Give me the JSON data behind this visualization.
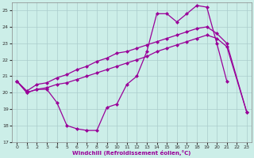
{
  "xlabel": "Windchill (Refroidissement éolien,°C)",
  "xlim": [
    -0.5,
    23.5
  ],
  "ylim": [
    17,
    25.5
  ],
  "xticks": [
    0,
    1,
    2,
    3,
    4,
    5,
    6,
    7,
    8,
    9,
    10,
    11,
    12,
    13,
    14,
    15,
    16,
    17,
    18,
    19,
    20,
    21,
    22,
    23
  ],
  "yticks": [
    17,
    18,
    19,
    20,
    21,
    22,
    23,
    24,
    25
  ],
  "bg_color": "#cceee8",
  "grid_color": "#aacccc",
  "line_color": "#990099",
  "line1_x": [
    0,
    1,
    2,
    3,
    4,
    5,
    6,
    7,
    8,
    9,
    10,
    11,
    12,
    13,
    14,
    15,
    16,
    17,
    18,
    19,
    20,
    21
  ],
  "line1_y": [
    20.7,
    20.0,
    20.2,
    20.2,
    19.4,
    18.0,
    17.8,
    17.7,
    17.7,
    19.1,
    19.3,
    20.5,
    21.0,
    22.5,
    24.8,
    24.8,
    24.3,
    24.8,
    25.3,
    25.2,
    23.0,
    20.7
  ],
  "line2_x": [
    0,
    1,
    2,
    3,
    4,
    5,
    6,
    7,
    8,
    9,
    10,
    11,
    12,
    13,
    14,
    15,
    16,
    17,
    18,
    19,
    20,
    21,
    23
  ],
  "line2_y": [
    20.7,
    20.1,
    20.5,
    20.6,
    20.9,
    21.1,
    21.4,
    21.6,
    21.9,
    22.1,
    22.4,
    22.5,
    22.7,
    22.9,
    23.1,
    23.3,
    23.5,
    23.7,
    23.9,
    24.0,
    23.6,
    23.0,
    18.8
  ],
  "line3_x": [
    0,
    1,
    2,
    3,
    4,
    5,
    6,
    7,
    8,
    9,
    10,
    11,
    12,
    13,
    14,
    15,
    16,
    17,
    18,
    19,
    20,
    21,
    23
  ],
  "line3_y": [
    20.7,
    20.0,
    20.2,
    20.3,
    20.5,
    20.6,
    20.8,
    21.0,
    21.2,
    21.4,
    21.6,
    21.8,
    22.0,
    22.2,
    22.5,
    22.7,
    22.9,
    23.1,
    23.3,
    23.5,
    23.3,
    22.8,
    18.8
  ]
}
